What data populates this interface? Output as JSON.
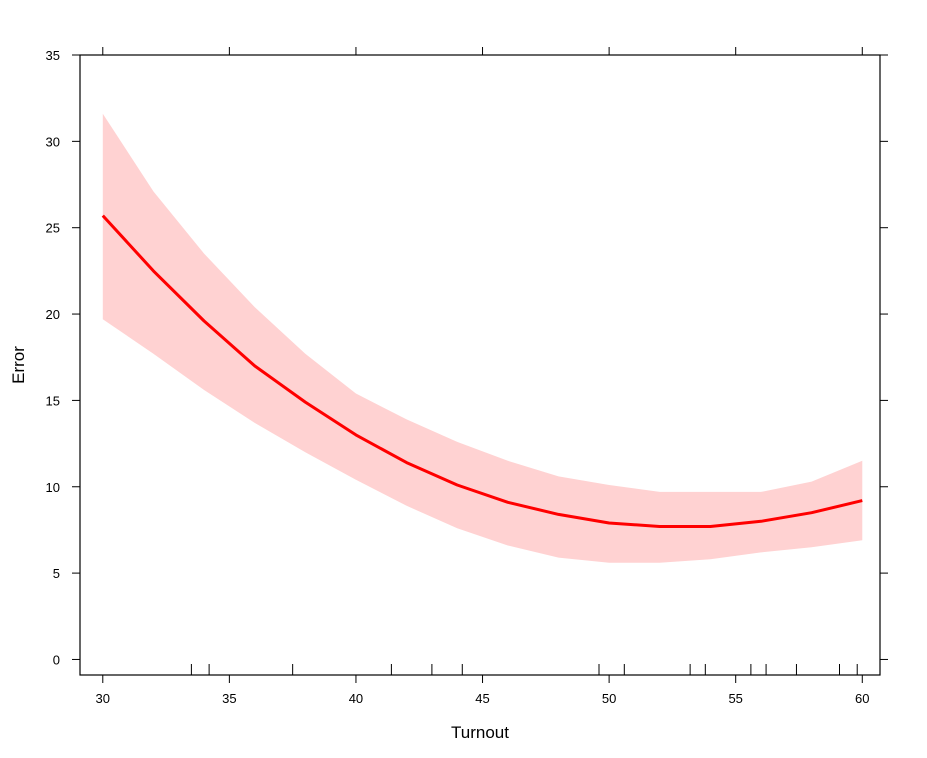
{
  "chart_data": {
    "type": "line",
    "title": "",
    "xlabel": "Turnout",
    "ylabel": "Error",
    "xlim": [
      29.1,
      60.7
    ],
    "ylim": [
      -0.9,
      35.0
    ],
    "xticks": [
      30,
      35,
      40,
      45,
      50,
      55,
      60
    ],
    "yticks": [
      0,
      5,
      10,
      15,
      20,
      25,
      30,
      35
    ],
    "grid": false,
    "legend": "none",
    "colors": {
      "line": "#ff0000",
      "band": "#ffd2d2",
      "axis": "#000000"
    },
    "series": [
      {
        "x": [
          30,
          32,
          34,
          36,
          38,
          40,
          42,
          44,
          46,
          48,
          50,
          52,
          54,
          56,
          58,
          60
        ],
        "y": [
          25.7,
          22.5,
          19.6,
          17.0,
          14.9,
          13.0,
          11.4,
          10.1,
          9.1,
          8.4,
          7.9,
          7.7,
          7.7,
          8.0,
          8.5,
          9.2
        ],
        "lower": [
          19.7,
          17.7,
          15.6,
          13.7,
          12.0,
          10.4,
          8.9,
          7.6,
          6.6,
          5.9,
          5.6,
          5.6,
          5.8,
          6.2,
          6.5,
          6.9
        ],
        "upper": [
          31.6,
          27.1,
          23.5,
          20.4,
          17.7,
          15.4,
          13.9,
          12.6,
          11.5,
          10.6,
          10.1,
          9.7,
          9.7,
          9.7,
          10.3,
          11.5
        ]
      }
    ],
    "rug_x": [
      33.5,
      34.2,
      37.5,
      41.4,
      43.0,
      44.2,
      49.6,
      50.6,
      53.2,
      53.8,
      55.6,
      56.2,
      57.4,
      59.1,
      59.8
    ]
  }
}
